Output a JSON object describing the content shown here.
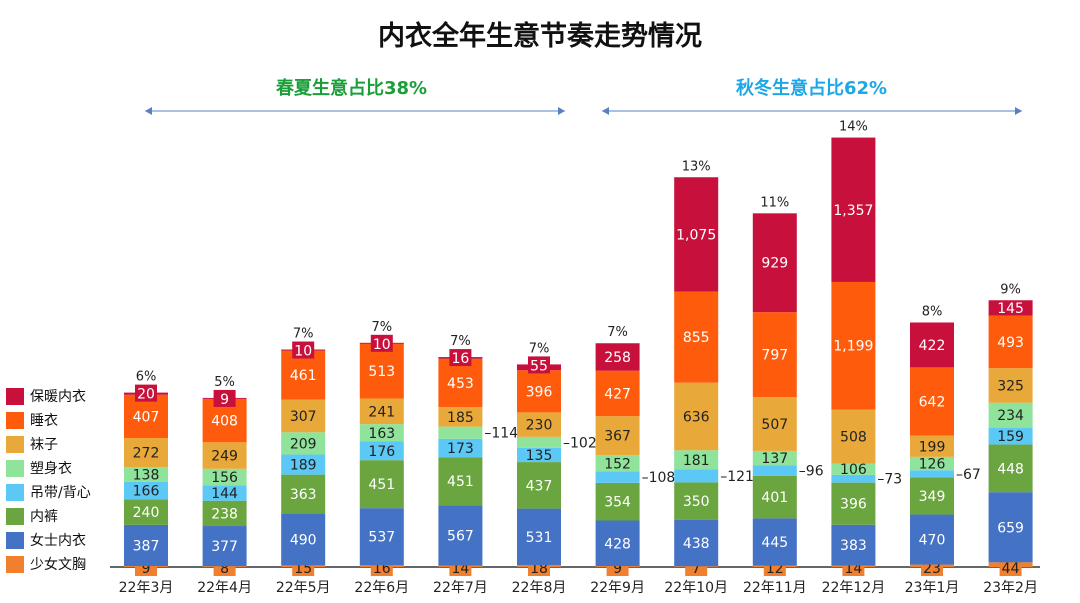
{
  "chart_data": {
    "type": "bar",
    "stacked": true,
    "title": "内衣全年生意节奏走势情况",
    "categories": [
      "22年3月",
      "22年4月",
      "22年5月",
      "22年6月",
      "22年7月",
      "22年8月",
      "22年9月",
      "22年10月",
      "22年11月",
      "22年12月",
      "23年1月",
      "23年2月"
    ],
    "series": [
      {
        "name": "少女文胸",
        "color": "#f07f2e",
        "values": [
          9,
          8,
          15,
          16,
          14,
          18,
          9,
          7,
          12,
          14,
          23,
          44
        ]
      },
      {
        "name": "女士内衣",
        "color": "#4472c4",
        "values": [
          387,
          377,
          490,
          537,
          567,
          531,
          428,
          438,
          445,
          383,
          470,
          659
        ]
      },
      {
        "name": "内裤",
        "color": "#6aa53f",
        "values": [
          240,
          238,
          363,
          451,
          451,
          437,
          354,
          350,
          401,
          396,
          349,
          448
        ]
      },
      {
        "name": "吊带/背心",
        "color": "#5bc8f5",
        "values": [
          166,
          144,
          189,
          176,
          173,
          135,
          108,
          121,
          96,
          73,
          67,
          159
        ]
      },
      {
        "name": "塑身衣",
        "color": "#8fe39a",
        "values": [
          138,
          156,
          209,
          163,
          114,
          102,
          152,
          181,
          137,
          106,
          126,
          234
        ]
      },
      {
        "name": "袜子",
        "color": "#e9a93a",
        "values": [
          272,
          249,
          307,
          241,
          185,
          230,
          367,
          636,
          507,
          508,
          199,
          325
        ]
      },
      {
        "name": "睡衣",
        "color": "#ff5b0d",
        "values": [
          407,
          408,
          461,
          513,
          453,
          396,
          427,
          855,
          797,
          1199,
          642,
          493
        ]
      },
      {
        "name": "保暖内衣",
        "color": "#c8103c",
        "values": [
          20,
          9,
          10,
          10,
          16,
          55,
          258,
          1075,
          929,
          1357,
          422,
          145
        ]
      }
    ],
    "share_labels": [
      "6%",
      "5%",
      "7%",
      "7%",
      "7%",
      "7%",
      "7%",
      "13%",
      "11%",
      "14%",
      "8%",
      "9%"
    ],
    "annotations": [
      {
        "text": "春夏生意占比38%",
        "color": "#1a9e3a",
        "from": "22年3月",
        "to": "22年8月"
      },
      {
        "text": "秋冬生意占比62%",
        "color": "#1ea7e8",
        "from": "22年9月",
        "to": "23年2月"
      }
    ],
    "legend_position": "left",
    "grid": false
  }
}
